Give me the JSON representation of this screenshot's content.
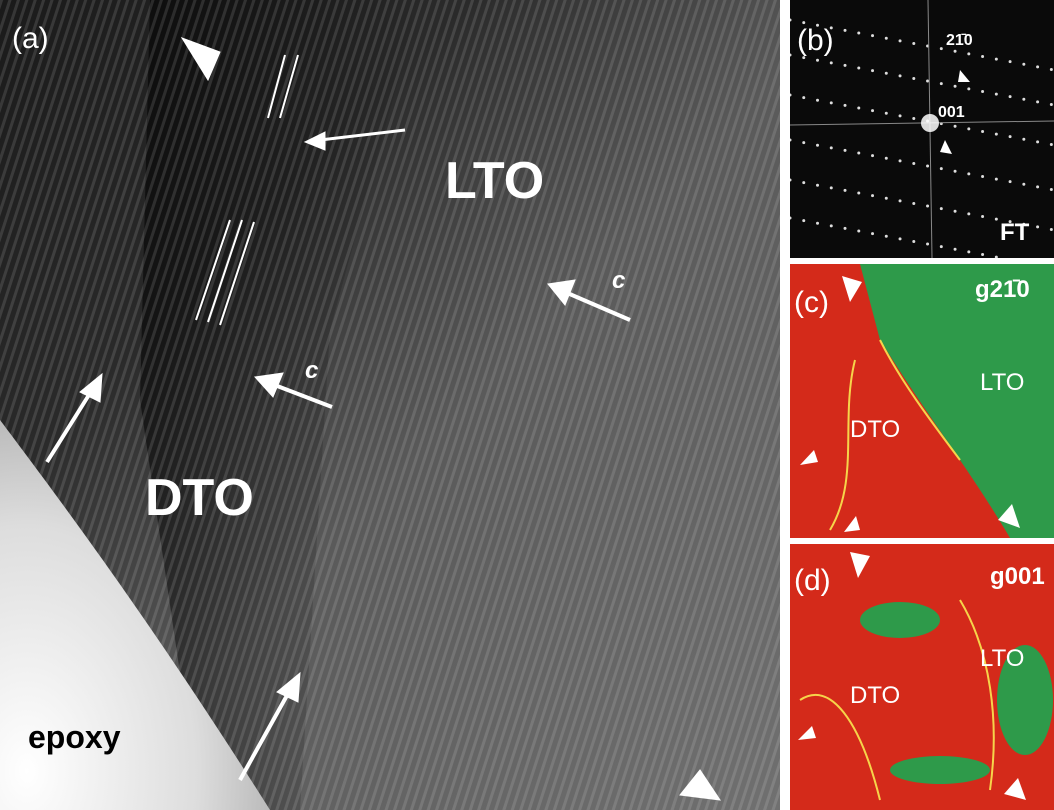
{
  "panels": [
    {
      "label": "(a)",
      "annotations": [
        "LTO",
        "DTO",
        "epoxy",
        "c",
        "c"
      ]
    },
    {
      "label": "(b)",
      "annotations": [
        "2̄",
        "21̄0",
        "001",
        "FT"
      ]
    },
    {
      "label": "(c)",
      "annotations": [
        "g21̄0",
        "LTO",
        "DTO"
      ]
    },
    {
      "label": "(d)",
      "annotations": [
        "g001",
        "LTO",
        "DTO"
      ]
    }
  ]
}
